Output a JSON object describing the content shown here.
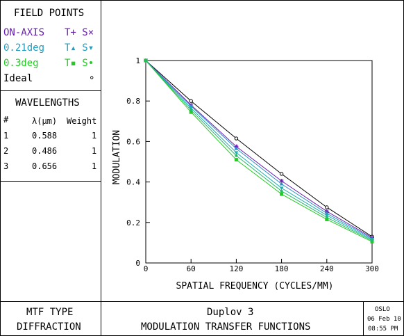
{
  "field_points": {
    "title": "FIELD POINTS",
    "rows": [
      {
        "name": "ON-AXIS",
        "symbols": "T+ S×",
        "color": "#6a1fb0"
      },
      {
        "name": "0.21deg",
        "symbols": "T▴ S▾",
        "color": "#1f9fc0"
      },
      {
        "name": "0.3deg",
        "symbols": "T▪ S•",
        "color": "#22cc22"
      },
      {
        "name": "Ideal",
        "symbols": "∘",
        "color": "#000000"
      }
    ]
  },
  "wavelengths": {
    "title": "WAVELENGTHS",
    "headers": [
      "#",
      "λ(μm)",
      "Weight"
    ],
    "rows": [
      [
        "1",
        "0.588",
        "1"
      ],
      [
        "2",
        "0.486",
        "1"
      ],
      [
        "3",
        "0.656",
        "1"
      ]
    ]
  },
  "footer": {
    "mtf_type_label": "MTF TYPE",
    "mtf_type_value": "DIFFRACTION",
    "lens_name": "Duplov 3",
    "plot_title": "MODULATION TRANSFER FUNCTIONS",
    "program": "OSLO",
    "date": "06 Feb 10",
    "time": "08:55 PM"
  },
  "chart_data": {
    "type": "line",
    "xlabel": "SPATIAL FREQUENCY (CYCLES/MM)",
    "ylabel": "MODULATION",
    "xlim": [
      0,
      300
    ],
    "ylim": [
      0,
      1
    ],
    "xticks": [
      0,
      60,
      120,
      180,
      240,
      300
    ],
    "yticks": [
      0,
      0.2,
      0.4,
      0.6,
      0.8,
      1
    ],
    "grid": false,
    "x": [
      0,
      60,
      120,
      180,
      240,
      300
    ],
    "series": [
      {
        "name": "Ideal",
        "marker": "circle",
        "color": "#000000",
        "values": [
          1,
          0.8,
          0.615,
          0.44,
          0.275,
          0.13
        ]
      },
      {
        "name": "ON-AXIS",
        "marker": "cross",
        "color": "#6a1fb0",
        "values": [
          1,
          0.78,
          0.575,
          0.405,
          0.255,
          0.125
        ]
      },
      {
        "name": "0.21deg T",
        "marker": "triangle-up",
        "color": "#2a8fc8",
        "values": [
          1,
          0.775,
          0.565,
          0.39,
          0.245,
          0.12
        ]
      },
      {
        "name": "0.21deg S",
        "marker": "triangle-down",
        "color": "#1fb0b0",
        "values": [
          1,
          0.765,
          0.545,
          0.37,
          0.235,
          0.115
        ]
      },
      {
        "name": "0.3deg T",
        "marker": "square",
        "color": "#22cc22",
        "values": [
          1,
          0.745,
          0.51,
          0.34,
          0.215,
          0.105
        ]
      },
      {
        "name": "0.3deg S",
        "marker": "dot",
        "color": "#22bb66",
        "values": [
          1,
          0.755,
          0.53,
          0.355,
          0.225,
          0.11
        ]
      }
    ]
  }
}
